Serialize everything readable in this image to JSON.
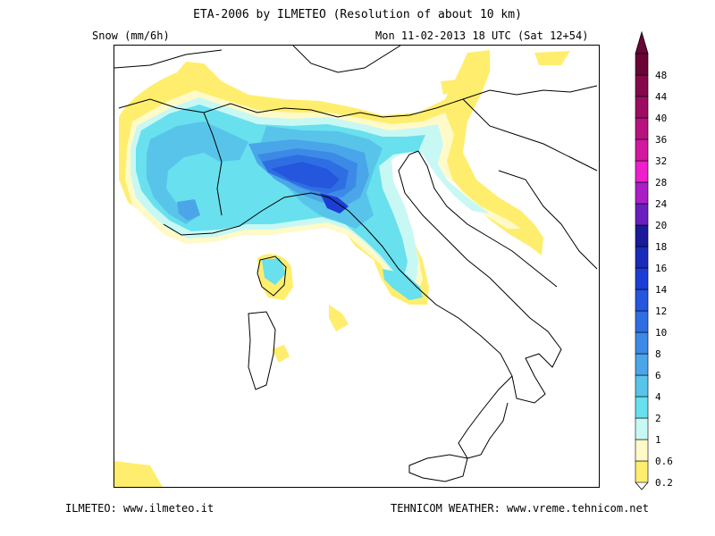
{
  "header": {
    "title": "ETA-2006 by ILMETEO (Resolution of about 10 km)",
    "variable": "Snow (mm/6h)",
    "datetime": "Mon 11-02-2013 18 UTC (Sat 12+54)"
  },
  "footer": {
    "left": "ILMETEO: www.ilmeteo.it",
    "right": "TEHNICOM WEATHER: www.vreme.tehnicom.net"
  },
  "legend": {
    "levels": [
      {
        "label": "0.2",
        "color": "#ffee6e"
      },
      {
        "label": "0.6",
        "color": "#fffac8"
      },
      {
        "label": "1",
        "color": "#c8f8f4"
      },
      {
        "label": "2",
        "color": "#68e0ee"
      },
      {
        "label": "4",
        "color": "#58c4ea"
      },
      {
        "label": "6",
        "color": "#4aa6e8"
      },
      {
        "label": "8",
        "color": "#3c8ae6"
      },
      {
        "label": "10",
        "color": "#2e6ee2"
      },
      {
        "label": "12",
        "color": "#2456de"
      },
      {
        "label": "14",
        "color": "#1c3ed4"
      },
      {
        "label": "16",
        "color": "#1a2aba"
      },
      {
        "label": "18",
        "color": "#1a1a9a"
      },
      {
        "label": "20",
        "color": "#6a1ec0"
      },
      {
        "label": "24",
        "color": "#aa1ec8"
      },
      {
        "label": "28",
        "color": "#ee1ecc"
      },
      {
        "label": "32",
        "color": "#d2189e"
      },
      {
        "label": "36",
        "color": "#b8127e"
      },
      {
        "label": "40",
        "color": "#9e0c62"
      },
      {
        "label": "44",
        "color": "#84084a"
      },
      {
        "label": "48",
        "color": "#6a0436"
      }
    ],
    "over_color": "#6a0436"
  }
}
